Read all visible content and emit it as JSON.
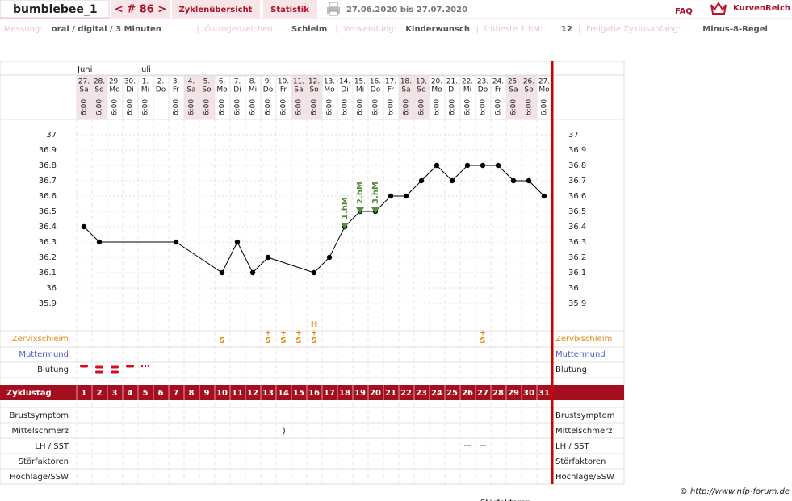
{
  "header": {
    "user": "bumblebee_1",
    "cycle": "< # 86 >",
    "tabs": [
      "Zyklenübersicht",
      "Statistik"
    ],
    "date_range": "27.06.2020 bis 27.07.2020",
    "faq": "FAQ",
    "brand": "KurvenReich"
  },
  "info": [
    {
      "label": "Messung:",
      "value": "oral / digital / 3 Minuten"
    },
    {
      "label": "Östrogenzeichen:",
      "value": "Schleim"
    },
    {
      "label": "Verwendung:",
      "value": "Kinderwunsch"
    },
    {
      "label": "früheste 1.hM:",
      "value": "12"
    },
    {
      "label": "Freigabe Zyklusanfang:",
      "value": "Minus-8-Regel"
    }
  ],
  "separator": "|",
  "nav_left": ">",
  "nav_right": "<",
  "year": "2020",
  "months": [
    {
      "label": "Juni",
      "day": 1
    },
    {
      "label": "Juli",
      "day": 5
    }
  ],
  "days": [
    {
      "date": "27.",
      "weekday": "Sa",
      "time": "6:00"
    },
    {
      "date": "28.",
      "weekday": "So",
      "time": "6:00"
    },
    {
      "date": "29.",
      "weekday": "Mo",
      "time": "6:00"
    },
    {
      "date": "30.",
      "weekday": "Di",
      "time": "6:00"
    },
    {
      "date": "1.",
      "weekday": "Mi",
      "time": "6:00"
    },
    {
      "date": "2.",
      "weekday": "Do",
      "time": null
    },
    {
      "date": "3.",
      "weekday": "Fr",
      "time": "6:00"
    },
    {
      "date": "4.",
      "weekday": "Sa",
      "time": "6:00"
    },
    {
      "date": "5.",
      "weekday": "So",
      "time": "6:00"
    },
    {
      "date": "6.",
      "weekday": "Mo",
      "time": "6:00"
    },
    {
      "date": "7.",
      "weekday": "Di",
      "time": "6:00"
    },
    {
      "date": "8.",
      "weekday": "Mi",
      "time": "6:00"
    },
    {
      "date": "9.",
      "weekday": "Do",
      "time": "6:00"
    },
    {
      "date": "10.",
      "weekday": "Fr",
      "time": "6:00"
    },
    {
      "date": "11.",
      "weekday": "Sa",
      "time": "6:00"
    },
    {
      "date": "12.",
      "weekday": "So",
      "time": "6:00"
    },
    {
      "date": "13.",
      "weekday": "Mo",
      "time": "6:00"
    },
    {
      "date": "14.",
      "weekday": "Di",
      "time": "6:00"
    },
    {
      "date": "15.",
      "weekday": "Mi",
      "time": "6:00"
    },
    {
      "date": "16.",
      "weekday": "Do",
      "time": "6:00"
    },
    {
      "date": "17.",
      "weekday": "Fr",
      "time": "6:00"
    },
    {
      "date": "18.",
      "weekday": "Sa",
      "time": "6:00"
    },
    {
      "date": "19.",
      "weekday": "So",
      "time": "6:00"
    },
    {
      "date": "20.",
      "weekday": "Mo",
      "time": "6:00"
    },
    {
      "date": "21.",
      "weekday": "Di",
      "time": "6:00"
    },
    {
      "date": "22.",
      "weekday": "Mi",
      "time": "6:00"
    },
    {
      "date": "23.",
      "weekday": "Do",
      "time": "6:00"
    },
    {
      "date": "24.",
      "weekday": "Fr",
      "time": "6:00"
    },
    {
      "date": "25.",
      "weekday": "Sa",
      "time": "6:00"
    },
    {
      "date": "26.",
      "weekday": "So",
      "time": "6:00"
    },
    {
      "date": "27.",
      "weekday": "Mo",
      "time": "6:00"
    }
  ],
  "chart_data": {
    "type": "line",
    "x": [
      1,
      2,
      7,
      10,
      11,
      12,
      13,
      16,
      17,
      18,
      19,
      20,
      21,
      22,
      23,
      24,
      25,
      26,
      27,
      28,
      29,
      30,
      31
    ],
    "values": [
      36.4,
      36.3,
      36.3,
      36.1,
      36.3,
      36.1,
      36.2,
      36.1,
      36.2,
      36.4,
      36.5,
      36.5,
      36.6,
      36.6,
      36.7,
      36.8,
      36.7,
      36.8,
      36.8,
      36.8,
      36.7,
      36.7,
      36.6
    ],
    "color": "#000000",
    "ylim": [
      35.9,
      37
    ],
    "yticks": [
      35.9,
      36,
      36.1,
      36.2,
      36.3,
      36.4,
      36.5,
      36.6,
      36.7,
      36.8,
      36.9,
      37
    ],
    "grid": true,
    "annotations": [
      {
        "label": "1.hM",
        "x": 18
      },
      {
        "label": "2.hM",
        "x": 19
      },
      {
        "label": "3.hM",
        "x": 20
      }
    ],
    "annotation_color": "#5b8a3c"
  },
  "rows": {
    "cervix": "Zervixschleim",
    "os": "Muttermund",
    "bleeding": "Blutung",
    "cycle_day": "Zyklustag",
    "breast": "Brustsymptom",
    "pain": "Mittelschmerz",
    "lh": "LH / SST",
    "disturb": "Störfaktoren",
    "high": "Hochlage/SSW"
  },
  "cycle_days": [
    1,
    2,
    3,
    4,
    5,
    6,
    7,
    8,
    9,
    10,
    11,
    12,
    13,
    14,
    15,
    16,
    17,
    18,
    19,
    20,
    21,
    22,
    23,
    24,
    25,
    26,
    27,
    28,
    29,
    30,
    31
  ],
  "cervix_marks": [
    {
      "day": 10,
      "label": "S"
    },
    {
      "day": 13,
      "label": "S",
      "sup": "+"
    },
    {
      "day": 14,
      "label": "S",
      "sup": "+"
    },
    {
      "day": 15,
      "label": "S",
      "sup": "+"
    },
    {
      "day": 16,
      "label": "S",
      "sup": "+",
      "extra": "H"
    },
    {
      "day": 27,
      "label": "S",
      "sup": "+"
    }
  ],
  "footer": "© http://www.nfp-forum.de",
  "cutoff": "Störfaktoren"
}
